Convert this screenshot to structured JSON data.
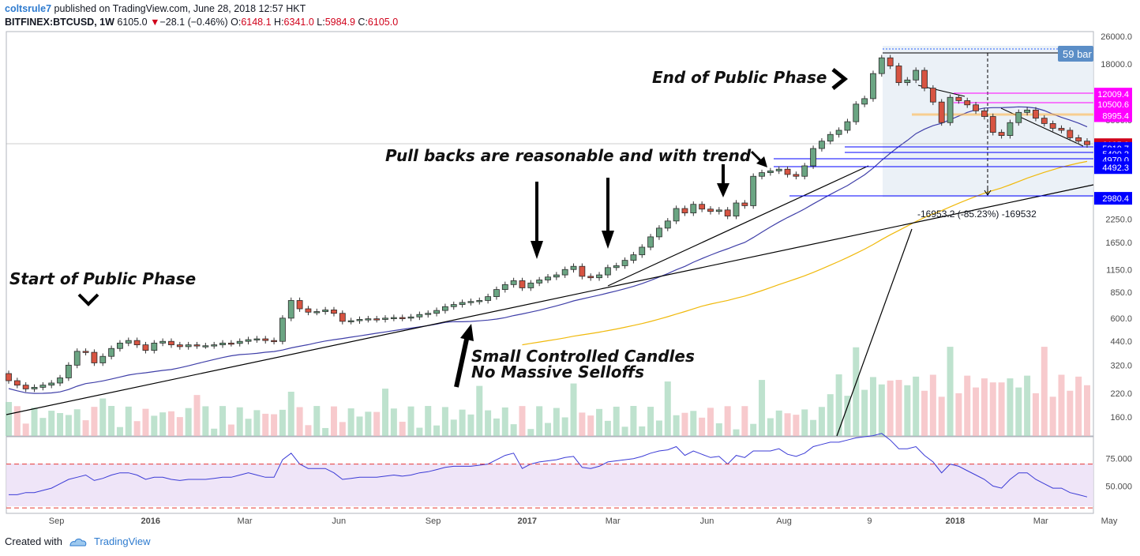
{
  "header": {
    "author": "coltsrule7",
    "published_text": "published on TradingView.com, June 28, 2018 12:57 HKT",
    "symbol": "BITFINEX:BTCUSD, 1W",
    "last": "6105.0",
    "change_arrow": "▼",
    "change": "−28.1 (−0.46%)",
    "o_label": "O:",
    "o": "6148.1",
    "h_label": "H:",
    "h": "6341.0",
    "l_label": "L:",
    "l": "5984.9",
    "c_label": "C:",
    "c": "6105.0"
  },
  "footer": {
    "created_with": "Created with",
    "brand": "TradingView"
  },
  "chart_data": [
    {
      "type": "candlestick",
      "symbol": "BITFINEX:BTCUSD",
      "interval": "1W",
      "scale": "log",
      "ylim": [
        130,
        27000
      ],
      "y_ticks": [
        "26000.0",
        "18000.0",
        "12000.0",
        "8500.0",
        "2980.4",
        "2250.0",
        "1650.0",
        "1150.0",
        "850.0",
        "600.0",
        "440.0",
        "320.0",
        "220.0",
        "160.0"
      ],
      "x_ticks": [
        "Sep",
        "2016",
        "Mar",
        "Jun",
        "Sep",
        "2017",
        "Mar",
        "Jun",
        "Aug",
        "9",
        "2018",
        "Mar",
        "May"
      ],
      "close_series_weekly": [
        260,
        245,
        233,
        238,
        245,
        252,
        270,
        320,
        385,
        380,
        330,
        360,
        400,
        430,
        445,
        420,
        390,
        430,
        440,
        420,
        410,
        420,
        415,
        415,
        420,
        430,
        428,
        440,
        450,
        455,
        445,
        440,
        600,
        760,
        680,
        650,
        655,
        670,
        640,
        575,
        580,
        590,
        595,
        590,
        600,
        605,
        600,
        610,
        630,
        640,
        665,
        700,
        720,
        740,
        750,
        760,
        800,
        880,
        940,
        990,
        900,
        960,
        1000,
        1040,
        1070,
        1150,
        1200,
        1050,
        1030,
        1070,
        1180,
        1210,
        1300,
        1400,
        1550,
        1780,
        2000,
        2200,
        2600,
        2450,
        2750,
        2580,
        2500,
        2550,
        2350,
        2800,
        2700,
        4000,
        4200,
        4300,
        4400,
        4100,
        4000,
        4600,
        5800,
        6400,
        7000,
        7400,
        8300,
        10500,
        11300,
        15800,
        19500,
        17500,
        14000,
        14500,
        16500,
        13000,
        10800,
        8200,
        11500,
        11000,
        10400,
        9600,
        8900,
        7200,
        6900,
        8200,
        9400,
        9700,
        8700,
        8100,
        7600,
        7400,
        6700,
        6400,
        6105
      ],
      "price_labels": [
        {
          "value": "6105.0",
          "color": "#d0021b"
        },
        {
          "value": "12009.4",
          "color": "#ff00ff"
        },
        {
          "value": "10500.6",
          "color": "#ff00ff"
        },
        {
          "value": "8995.4",
          "color": "#ff00ff"
        },
        {
          "value": "5810.7",
          "color": "#0000ff"
        },
        {
          "value": "5400.2",
          "color": "#0000ff"
        },
        {
          "value": "4970.0",
          "color": "#0000ff"
        },
        {
          "value": "4492.3",
          "color": "#0000ff"
        },
        {
          "value": "2980.4",
          "color": "#0000ff"
        }
      ],
      "measurement_label": "-16953.2 (-85.23%) -169532",
      "bars_label": "59 bar",
      "annotations": [
        "Start of Public Phase",
        "End of Public Phase",
        "Pull backs are reasonable and with trend",
        "Small Controlled Candles",
        "No Massive Selloffs"
      ]
    },
    {
      "type": "line",
      "name_hint": "oscillator",
      "y_ticks": [
        "75.000",
        "50.000"
      ],
      "ylim": [
        25,
        95
      ],
      "levels": [
        70,
        30
      ],
      "values": [
        42,
        42,
        44,
        44,
        46,
        48,
        52,
        56,
        58,
        60,
        55,
        57,
        60,
        62,
        62,
        60,
        56,
        58,
        58,
        56,
        55,
        56,
        56,
        56,
        57,
        58,
        58,
        60,
        62,
        60,
        58,
        58,
        74,
        80,
        70,
        66,
        66,
        66,
        62,
        56,
        57,
        58,
        58,
        58,
        59,
        60,
        59,
        60,
        62,
        63,
        65,
        67,
        68,
        68,
        68,
        69,
        70,
        74,
        78,
        80,
        66,
        70,
        72,
        73,
        74,
        76,
        77,
        67,
        66,
        68,
        72,
        73,
        74,
        75,
        77,
        80,
        82,
        83,
        86,
        78,
        82,
        79,
        76,
        77,
        70,
        78,
        76,
        82,
        82,
        82,
        84,
        79,
        77,
        80,
        86,
        88,
        90,
        90,
        92,
        94,
        95,
        96,
        98,
        92,
        84,
        84,
        86,
        78,
        72,
        62,
        70,
        68,
        64,
        60,
        56,
        50,
        48,
        56,
        62,
        62,
        56,
        52,
        48,
        48,
        44,
        42,
        40
      ]
    }
  ]
}
